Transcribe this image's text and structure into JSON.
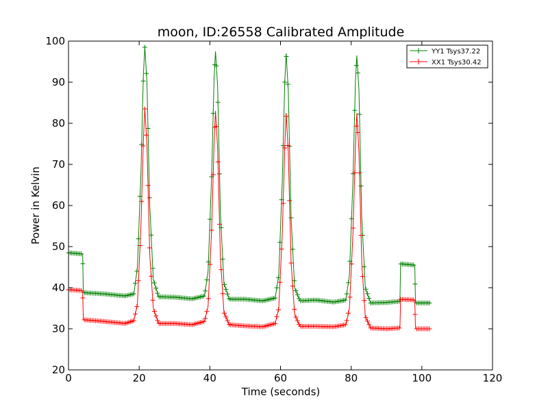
{
  "chart_data": {
    "type": "line",
    "title": "moon, ID:26558 Calibrated Amplitude",
    "xlabel": "Time (seconds)",
    "ylabel": "Power in Kelvin",
    "xlim": [
      0,
      120
    ],
    "ylim": [
      20,
      100
    ],
    "xticks": [
      0,
      20,
      40,
      60,
      80,
      100,
      120
    ],
    "yticks": [
      20,
      30,
      40,
      50,
      60,
      70,
      80,
      90,
      100
    ],
    "grid": false,
    "legend_position": "top-right",
    "marker": "+",
    "series": [
      {
        "name": "YY1 Tsys37.22",
        "color": "#008000",
        "x": [
          0,
          4,
          4.2,
          10,
          16,
          18.5,
          19.5,
          20.5,
          21.2,
          21.6,
          22.2,
          23,
          24,
          25.5,
          30,
          35,
          38.5,
          39.5,
          40.5,
          41.2,
          41.6,
          42.2,
          43,
          44,
          45.5,
          50,
          55,
          58.5,
          59.5,
          60.5,
          61.2,
          61.6,
          62.2,
          63,
          64,
          65.5,
          70,
          75,
          78.5,
          79.5,
          80.5,
          81.2,
          81.6,
          82.2,
          83,
          84,
          85.5,
          90,
          93.8,
          94,
          98,
          98.2,
          102.5
        ],
        "y": [
          48.5,
          48.2,
          38.8,
          38.5,
          38,
          38.5,
          45,
          68,
          92,
          98.5,
          90,
          60,
          42,
          37.8,
          37.7,
          37.3,
          38,
          44,
          67,
          91,
          97.5,
          89,
          58,
          41,
          37.2,
          37.2,
          36.8,
          37.5,
          43,
          66,
          90,
          97,
          88,
          57,
          40,
          36.8,
          37,
          36.5,
          37,
          43,
          66,
          90,
          96.5,
          88,
          57,
          40,
          36.3,
          36.4,
          36.7,
          45.8,
          45.5,
          36.3,
          36.3
        ]
      },
      {
        "name": "XX1 Tsys30.42",
        "color": "#ff0000",
        "x": [
          0,
          4,
          4.2,
          10,
          16,
          18.5,
          19.5,
          20.5,
          21.2,
          21.6,
          22.2,
          23,
          24,
          25.5,
          30,
          35,
          38.5,
          39.5,
          40.5,
          41.2,
          41.6,
          42.2,
          43,
          44,
          45.5,
          50,
          55,
          58.5,
          59.5,
          60.5,
          61.2,
          61.6,
          62.2,
          63,
          64,
          65.5,
          70,
          75,
          78.5,
          79.5,
          80.5,
          81.2,
          81.6,
          82.2,
          83,
          84,
          85.5,
          90,
          93.8,
          94,
          98,
          98.2,
          102.5
        ],
        "y": [
          39.5,
          39.3,
          32.2,
          31.8,
          31.3,
          32,
          36,
          55,
          76,
          83.5,
          75,
          48,
          35,
          31.3,
          31.3,
          31,
          31.8,
          35.5,
          54,
          75,
          83,
          74,
          47,
          34,
          31,
          30.7,
          30.5,
          31.3,
          35,
          53,
          74,
          82.5,
          73,
          46,
          33.5,
          30.6,
          30.6,
          30.5,
          31,
          35,
          53,
          74,
          82.5,
          73,
          46,
          33,
          30.2,
          30,
          30.2,
          37.2,
          37,
          30,
          30
        ]
      }
    ]
  }
}
